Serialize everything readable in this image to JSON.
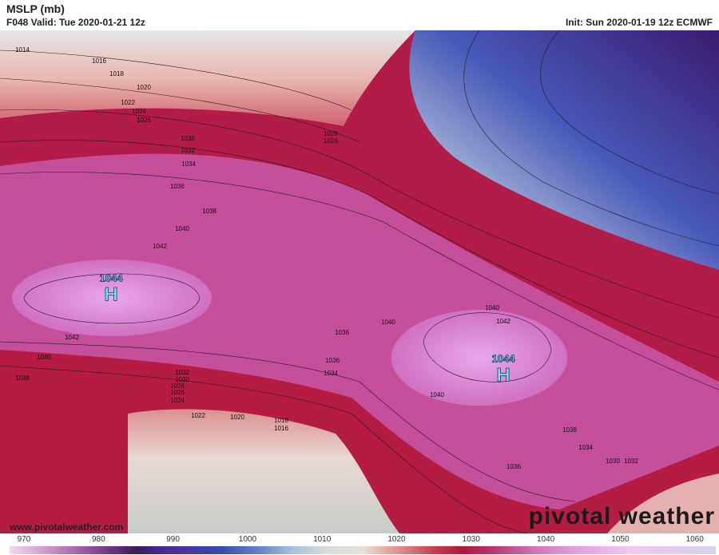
{
  "header": {
    "title": "MSLP (mb)",
    "valid": "F048 Valid: Tue 2020-01-21 12z",
    "init": "Init: Sun 2020-01-19 12z ECMWF"
  },
  "contour_labels": [
    1014,
    1016,
    1018,
    1020,
    1022,
    1024,
    1026,
    1030,
    1032,
    1034,
    1036,
    1038,
    1040,
    1042,
    1042,
    1040,
    1038,
    1032,
    1030,
    1028,
    1026,
    1024,
    1022,
    1020,
    1018,
    1016,
    1028,
    1026,
    1040,
    1042,
    1040,
    1036,
    1036,
    1034,
    1040,
    1038,
    1034,
    1030,
    1032,
    1036
  ],
  "highs": [
    {
      "value": 1044,
      "symbol": "H"
    },
    {
      "value": 1044,
      "symbol": "H"
    }
  ],
  "footer": {
    "url": "www.pivotalweather.com",
    "logo": "pivotal weather"
  },
  "colorbar": {
    "ticks": [
      970,
      980,
      990,
      1000,
      1010,
      1020,
      1030,
      1040,
      1050,
      1060
    ]
  }
}
